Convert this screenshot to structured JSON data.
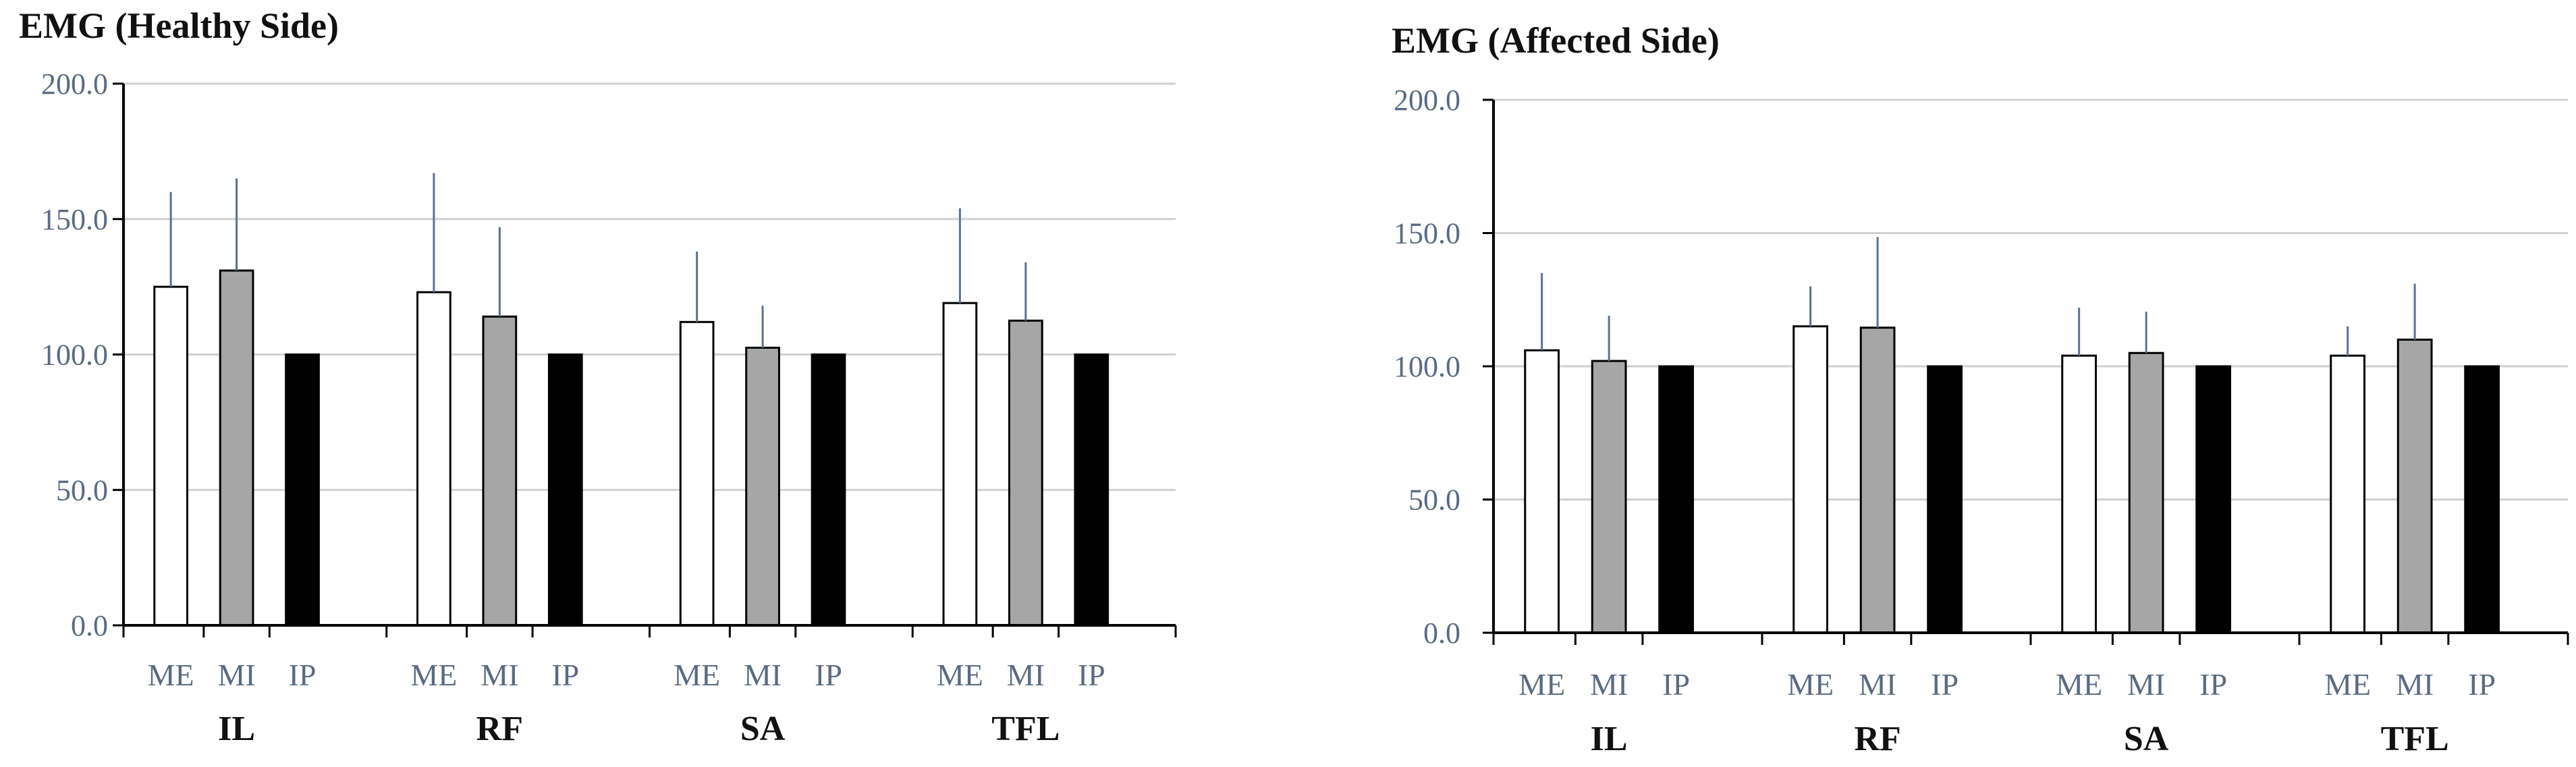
{
  "chart_data": [
    {
      "type": "bar",
      "title": "EMG (Healthy Side)",
      "groups": [
        "IL",
        "RF",
        "SA",
        "TFL"
      ],
      "conditions": [
        "ME",
        "MI",
        "IP"
      ],
      "series": [
        {
          "name": "ME",
          "values": [
            125.0,
            123.0,
            112.0,
            119.0
          ],
          "errors": [
            35.0,
            44.0,
            26.0,
            35.0
          ]
        },
        {
          "name": "MI",
          "values": [
            131.0,
            114.0,
            102.5,
            112.5
          ],
          "errors": [
            34.0,
            33.0,
            15.5,
            21.5
          ]
        },
        {
          "name": "IP",
          "values": [
            100.0,
            100.0,
            100.0,
            100.0
          ],
          "errors": [
            0,
            0,
            0,
            0
          ]
        }
      ],
      "yticks": [
        "0.0",
        "50.0",
        "100.0",
        "150.0",
        "200.0"
      ],
      "ylim": [
        0,
        200
      ],
      "grid": true
    },
    {
      "type": "bar",
      "title": "EMG (Affected Side)",
      "groups": [
        "IL",
        "RF",
        "SA",
        "TFL"
      ],
      "conditions": [
        "ME",
        "MI",
        "IP"
      ],
      "series": [
        {
          "name": "ME",
          "values": [
            106.0,
            115.0,
            104.0,
            104.0
          ],
          "errors": [
            29.0,
            15.0,
            18.0,
            11.0
          ]
        },
        {
          "name": "MI",
          "values": [
            102.0,
            114.5,
            105.0,
            110.0
          ],
          "errors": [
            17.0,
            34.0,
            15.5,
            21.0
          ]
        },
        {
          "name": "IP",
          "values": [
            100.0,
            100.0,
            100.0,
            100.0
          ],
          "errors": [
            0,
            0,
            0,
            0
          ]
        }
      ],
      "yticks": [
        "0.0",
        "50.0",
        "100.0",
        "150.0",
        "200.0"
      ],
      "ylim": [
        0,
        200
      ],
      "grid": true
    }
  ],
  "colors": {
    "ME": "#ffffff",
    "MI": "#a6a6a6",
    "IP": "#000000",
    "error": "#5b7290",
    "grid": "#d0d0d0",
    "axis": "#000000"
  }
}
